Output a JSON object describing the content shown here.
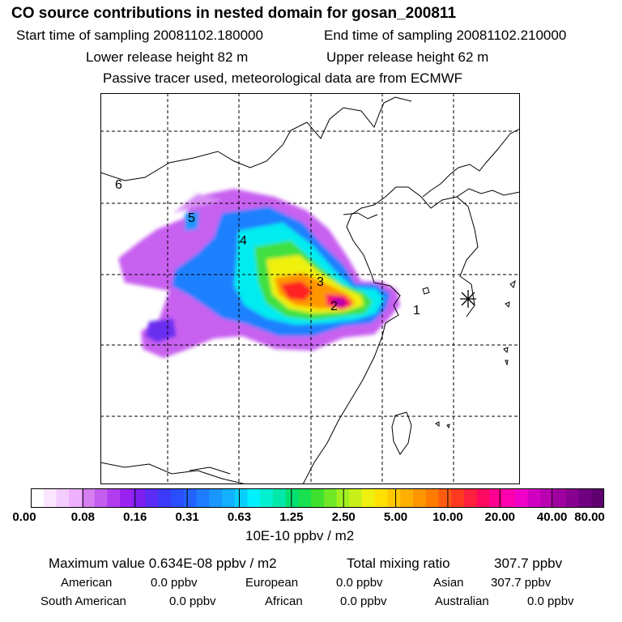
{
  "header": {
    "title": "CO  source contributions in nested domain for gosan_200811",
    "start": "Start time of sampling 20081102.180000",
    "end": "End time of sampling 20081102.210000",
    "lower": "Lower release height   82 m",
    "upper": "Upper release height   62 m",
    "note": "Passive tracer used, meteorological data are from ECMWF"
  },
  "map": {
    "site_labels": [
      "1",
      "2",
      "3",
      "4",
      "5",
      "6"
    ],
    "receptor_marker": "asterisk"
  },
  "colorbar": {
    "ticks": [
      "0.00",
      "0.08",
      "0.16",
      "0.31",
      "0.63",
      "1.25",
      "2.50",
      "5.00",
      "10.00",
      "20.00",
      "40.00",
      "80.00"
    ],
    "colors": [
      "#ffffff",
      "#fbe6ff",
      "#f4ccff",
      "#eeb0ff",
      "#d57ff0",
      "#c35ef0",
      "#b23cf0",
      "#9a22f0",
      "#7c1ff0",
      "#5a2cf5",
      "#3a3af8",
      "#2a4efb",
      "#2262ff",
      "#1e7cff",
      "#1a96ff",
      "#12b0ff",
      "#08cfff",
      "#00f0ff",
      "#00f0d0",
      "#00e8a8",
      "#00e070",
      "#18e050",
      "#40e030",
      "#70e828",
      "#a0f020",
      "#c8f018",
      "#f0f010",
      "#ffe000",
      "#ffc800",
      "#ffb000",
      "#ff9600",
      "#ff7c00",
      "#ff5a10",
      "#ff3a20",
      "#ff2040",
      "#ff0a60",
      "#ff0090",
      "#ff00b0",
      "#f000c8",
      "#d000c0",
      "#b800b0",
      "#a000a0",
      "#880090",
      "#700080",
      "#600070"
    ],
    "unit": "10E-10 ppbv / m2"
  },
  "stats": {
    "max_label": "Maximum value  0.634E-08 ppbv / m2",
    "total_label": "Total mixing ratio",
    "total_value": "307.7 ppbv",
    "american_label": "American",
    "american_value": "0.0 ppbv",
    "european_label": "European",
    "european_value": "0.0 ppbv",
    "asian_label": "Asian",
    "asian_value": "307.7 ppbv",
    "south_american_label": "South American",
    "south_american_value": "0.0 ppbv",
    "african_label": "African",
    "african_value": "0.0 ppbv",
    "australian_label": "Australian",
    "australian_value": "0.0 ppbv"
  }
}
